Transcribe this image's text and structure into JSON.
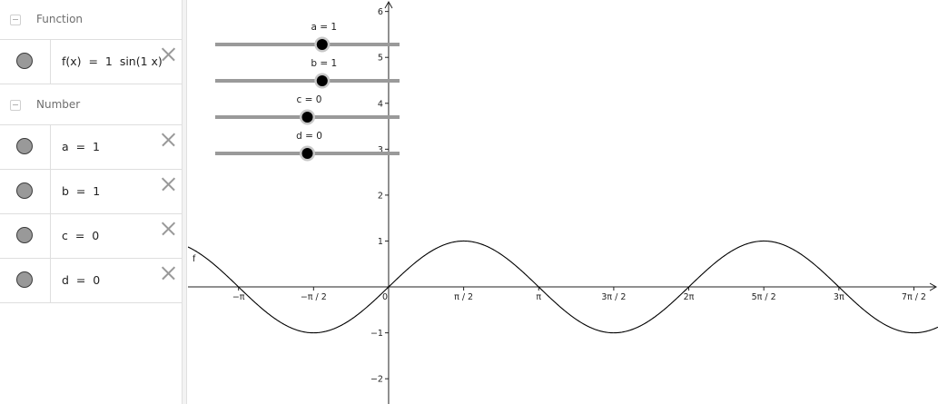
{
  "algebra": {
    "groups": [
      {
        "label": "Function"
      },
      {
        "label": "Number"
      }
    ],
    "function_row": {
      "expression": "f(x)  =  1  sin(1 x)"
    },
    "number_rows": [
      {
        "expression": "a  =  1"
      },
      {
        "expression": "b  =  1"
      },
      {
        "expression": "c  =  0"
      },
      {
        "expression": "d  =  0"
      }
    ]
  },
  "sliders": [
    {
      "label": "a = 1",
      "value": 1,
      "min": -5,
      "max": 5
    },
    {
      "label": "b = 1",
      "value": 1,
      "min": -5,
      "max": 5
    },
    {
      "label": "c = 0",
      "value": 0,
      "min": -5,
      "max": 5
    },
    {
      "label": "d = 0",
      "value": 0,
      "min": -5,
      "max": 5
    }
  ],
  "chart_data": {
    "type": "line",
    "function": "f(x) = 1 sin(1 x)",
    "function_label": "f",
    "xlim": [
      -4.2,
      11.5
    ],
    "ylim": [
      -2.55,
      6.25
    ],
    "x_ticks": [
      {
        "value": -3.14159,
        "label": "−π"
      },
      {
        "value": -1.5708,
        "label": "−π / 2"
      },
      {
        "value": 0,
        "label": "0"
      },
      {
        "value": 1.5708,
        "label": "π / 2"
      },
      {
        "value": 3.14159,
        "label": "π"
      },
      {
        "value": 4.71239,
        "label": "3π / 2"
      },
      {
        "value": 6.28319,
        "label": "2π"
      },
      {
        "value": 7.85398,
        "label": "5π / 2"
      },
      {
        "value": 9.42478,
        "label": "3π"
      },
      {
        "value": 10.99557,
        "label": "7π / 2"
      }
    ],
    "y_ticks": [
      {
        "value": -2,
        "label": "−2"
      },
      {
        "value": -1,
        "label": "−1"
      },
      {
        "value": 1,
        "label": "1"
      },
      {
        "value": 2,
        "label": "2"
      },
      {
        "value": 3,
        "label": "3"
      },
      {
        "value": 4,
        "label": "4"
      },
      {
        "value": 5,
        "label": "5"
      },
      {
        "value": 6,
        "label": "6"
      }
    ],
    "grid": false
  },
  "colors": {
    "slider_track": "#9a9a9a",
    "slider_knob": "#000000",
    "marble": "#999999",
    "curve": "#000000"
  }
}
